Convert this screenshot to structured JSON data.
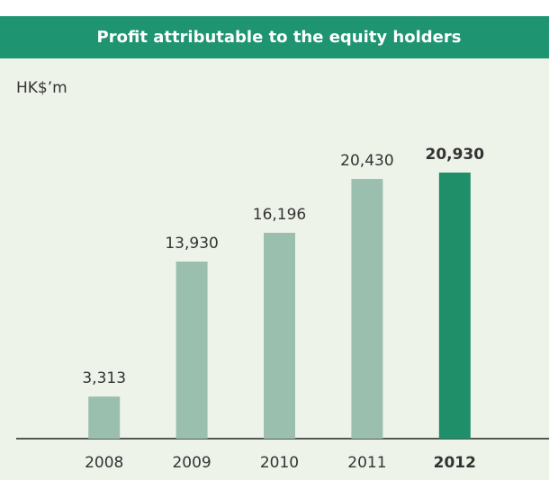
{
  "chart_data": {
    "type": "bar",
    "title": "Profit attributable to the equity holders",
    "unit_label": "HK$’m",
    "categories": [
      "2008",
      "2009",
      "2010",
      "2011",
      "2012"
    ],
    "values": [
      3313,
      13930,
      16196,
      20430,
      20930
    ],
    "value_labels": [
      "3,313",
      "13,930",
      "16,196",
      "20,430",
      "20,930"
    ],
    "colors": [
      "#9bbfaf",
      "#9bbfaf",
      "#9bbfaf",
      "#9bbfaf",
      "#1e8f69"
    ],
    "bold": [
      false,
      false,
      false,
      false,
      true
    ],
    "header_color": "#1e9471",
    "background": "#eef3ea"
  }
}
